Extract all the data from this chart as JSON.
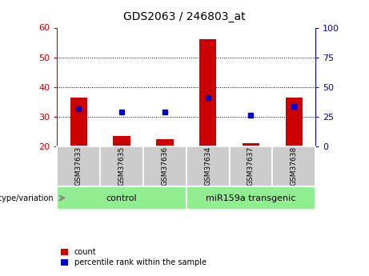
{
  "title": "GDS2063 / 246803_at",
  "samples": [
    "GSM37633",
    "GSM37635",
    "GSM37636",
    "GSM37634",
    "GSM37637",
    "GSM37638"
  ],
  "count_values": [
    36.5,
    23.5,
    22.5,
    56.0,
    21.0,
    36.5
  ],
  "count_base": 20,
  "percentile_values": [
    32.5,
    31.5,
    31.5,
    36.5,
    30.5,
    33.5
  ],
  "ylim": [
    20,
    60
  ],
  "yticks_left": [
    20,
    30,
    40,
    50,
    60
  ],
  "yticks_right": [
    0,
    25,
    50,
    75,
    100
  ],
  "groups": [
    {
      "label": "control",
      "color": "#90EE90",
      "start": 0,
      "end": 3
    },
    {
      "label": "miR159a transgenic",
      "color": "#90EE90",
      "start": 3,
      "end": 6
    }
  ],
  "bar_color": "#CC0000",
  "dot_color": "#0000CC",
  "bar_width": 0.4,
  "left_axis_color": "#CC0000",
  "right_axis_color": "#0000CC",
  "genotype_label": "genotype/variation",
  "legend_count": "count",
  "legend_percentile": "percentile rank within the sample",
  "background_color": "#ffffff",
  "plot_bg": "#ffffff",
  "tick_label_bg": "#cccccc",
  "title_fontsize": 10
}
